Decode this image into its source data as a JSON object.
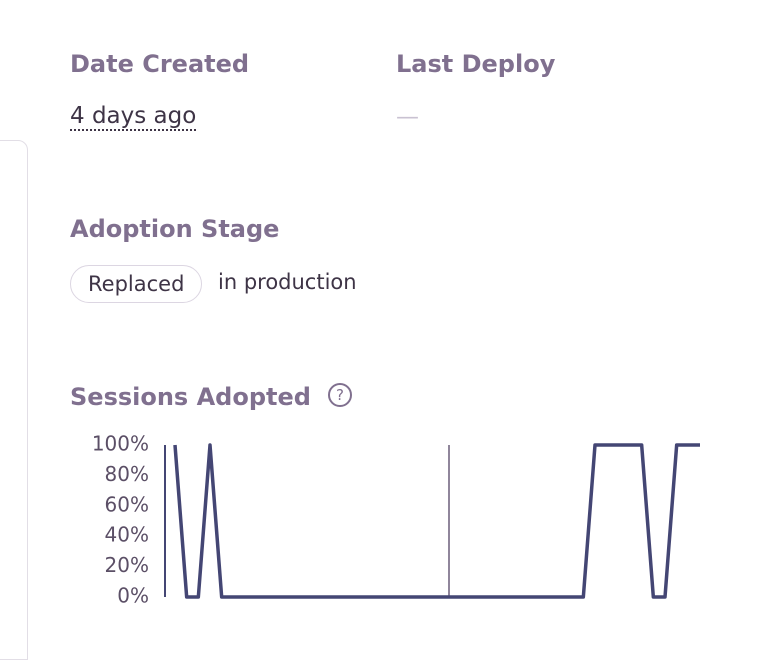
{
  "details": {
    "date_created": {
      "label": "Date Created",
      "value": "4 days ago"
    },
    "last_deploy": {
      "label": "Last Deploy",
      "value": "—"
    },
    "adoption_stage": {
      "label": "Adoption Stage",
      "stage": "Replaced",
      "environment": "in production"
    },
    "sessions_adopted": {
      "label": "Sessions Adopted",
      "help": "?"
    }
  },
  "chart_data": {
    "type": "line",
    "color": "#444674",
    "values": [
      100,
      0,
      0,
      100,
      0,
      0,
      0,
      0,
      0,
      0,
      0,
      0,
      0,
      0,
      0,
      0,
      0,
      0,
      0,
      0,
      0,
      0,
      0,
      0,
      0,
      0,
      0,
      0,
      0,
      0,
      0,
      0,
      0,
      0,
      0,
      0,
      100,
      100,
      100,
      100,
      100,
      0,
      0,
      100,
      100,
      100
    ],
    "ylim": [
      0,
      100
    ],
    "yticks": [
      {
        "value": 0,
        "label": "0%"
      },
      {
        "value": 20,
        "label": "20%"
      },
      {
        "value": 40,
        "label": "40%"
      },
      {
        "value": 60,
        "label": "60%"
      },
      {
        "value": 80,
        "label": "80%"
      },
      {
        "value": 100,
        "label": "100%"
      }
    ]
  }
}
